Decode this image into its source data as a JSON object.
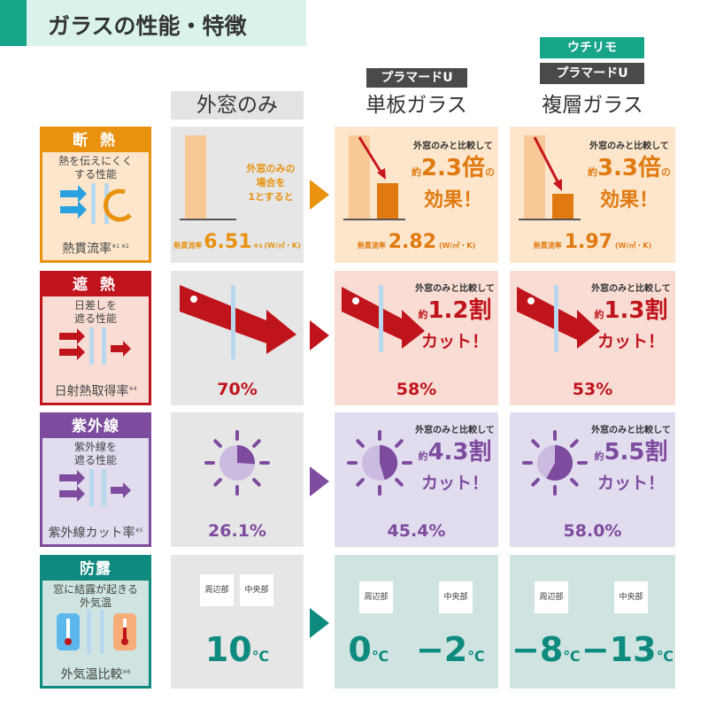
{
  "title": "ガラスの性能・特徴",
  "columns": {
    "col1": "外窓のみ",
    "col2": {
      "tag": "プラマードU",
      "name": "単板ガラス"
    },
    "col3": {
      "brand": "ウチリモ",
      "tag": "プラマードU",
      "name": "複層ガラス"
    }
  },
  "colors": {
    "insulation": "#e8920f",
    "shading": "#c0141c",
    "uv": "#7d4c9e",
    "dew": "#0e8a7e"
  },
  "rows": {
    "insulation": {
      "title": "断 熱",
      "desc": "熱を伝えにくく\nする性能",
      "footer": "熱貫流率",
      "note": "※1 ※2",
      "col1_text": "外窓のみの\n場合を\n1とすると",
      "metric_label": "熱貫流率",
      "col1_value": "6.51",
      "col1_note": "※3",
      "unit": "(W/㎡・K)",
      "compare": "外窓のみと比較して",
      "col2_value": "2.82",
      "col2_prefix": "約",
      "col2_big": "2.3倍",
      "col2_suffix": "の",
      "col2_line2": "効果！",
      "col3_value": "1.97",
      "col3_big": "3.3倍",
      "col3_line2": "効果！"
    },
    "shading": {
      "title": "遮 熱",
      "desc": "日差しを\n遮る性能",
      "footer": "日射熱取得率",
      "note": "※4",
      "col1_value": "70%",
      "col2_value": "58%",
      "col3_value": "53%",
      "compare": "外窓のみと比較して",
      "prefix": "約",
      "col2_big": "1.2割",
      "col3_big": "1.3割",
      "cut": "カット！"
    },
    "uv": {
      "title": "紫外線",
      "desc": "紫外線を\n遮る性能",
      "footer": "紫外線カット率",
      "note": "※5",
      "col1_value": "26.1%",
      "col2_value": "45.4%",
      "col3_value": "58.0%",
      "compare": "外窓のみと比較して",
      "prefix": "約",
      "col2_big": "4.3割",
      "col3_big": "5.5割",
      "cut": "カット！"
    },
    "dew": {
      "title": "防露",
      "desc": "窓に結露が起きる\n外気温",
      "footer": "外気温比較",
      "note": "※6",
      "edge": "周辺部",
      "center": "中央部",
      "col1_value": "10",
      "col2_edge": "0",
      "col2_center": "−2",
      "col3_edge": "−8",
      "col3_center": "−13",
      "unit": "℃"
    }
  }
}
